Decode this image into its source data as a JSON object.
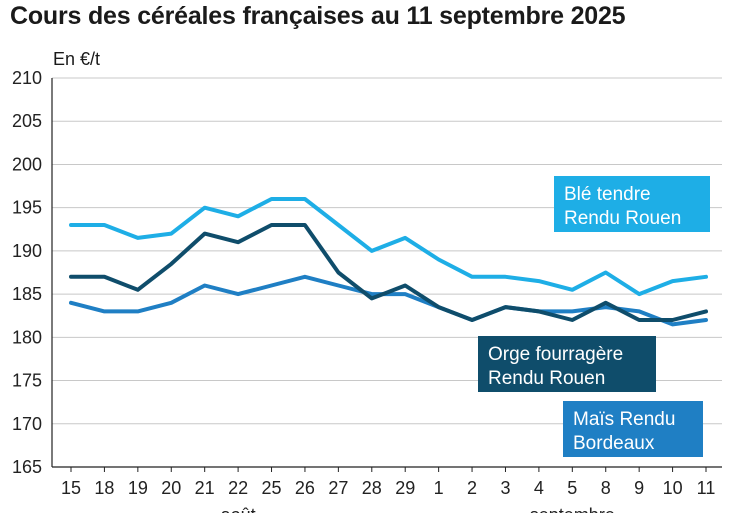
{
  "title": "Cours des céréales françaises au 11 septembre 2025",
  "unit_label": "En €/t",
  "colors": {
    "ble": "#1eaee6",
    "orge": "#0f4d6b",
    "mais": "#1f7fc4",
    "grid": "#c8c8c8",
    "axis": "#222222"
  },
  "chart_data": {
    "type": "line",
    "title": "Cours des céréales françaises au 11 septembre 2025",
    "ylabel": "En €/t",
    "ylim": [
      165,
      210
    ],
    "yticks": [
      165,
      170,
      175,
      180,
      185,
      190,
      195,
      200,
      205,
      210
    ],
    "grid": "horizontal",
    "x": [
      "15",
      "18",
      "19",
      "20",
      "21",
      "22",
      "25",
      "26",
      "27",
      "28",
      "29",
      "1",
      "2",
      "3",
      "4",
      "5",
      "8",
      "9",
      "10",
      "11"
    ],
    "month_labels": [
      {
        "label": "août",
        "at_index": 5
      },
      {
        "label": "septembre",
        "at_index": 15
      }
    ],
    "series": [
      {
        "name": "Blé tendre Rendu Rouen",
        "name_lines": [
          "Blé tendre",
          "Rendu Rouen"
        ],
        "color": "#1eaee6",
        "values": [
          193,
          193,
          191.5,
          192,
          195,
          194,
          196,
          196,
          193,
          190,
          191.5,
          189,
          187,
          187,
          186.5,
          185.5,
          187.5,
          185,
          186.5,
          187
        ]
      },
      {
        "name": "Orge fourragère Rendu Rouen",
        "name_lines": [
          "Orge fourragère",
          "Rendu Rouen"
        ],
        "color": "#0f4d6b",
        "values": [
          187,
          187,
          185.5,
          188.5,
          192,
          191,
          193,
          193,
          187.5,
          184.5,
          186,
          183.5,
          182,
          183.5,
          183,
          182,
          184,
          182,
          182,
          183
        ]
      },
      {
        "name": "Maïs Rendu Bordeaux",
        "name_lines": [
          "Maïs Rendu",
          "Bordeaux"
        ],
        "color": "#1f7fc4",
        "values": [
          184,
          183,
          183,
          184,
          186,
          185,
          186,
          187,
          186,
          185,
          185,
          183.5,
          182,
          183.5,
          183,
          183,
          183.5,
          183,
          181.5,
          182
        ]
      }
    ]
  }
}
